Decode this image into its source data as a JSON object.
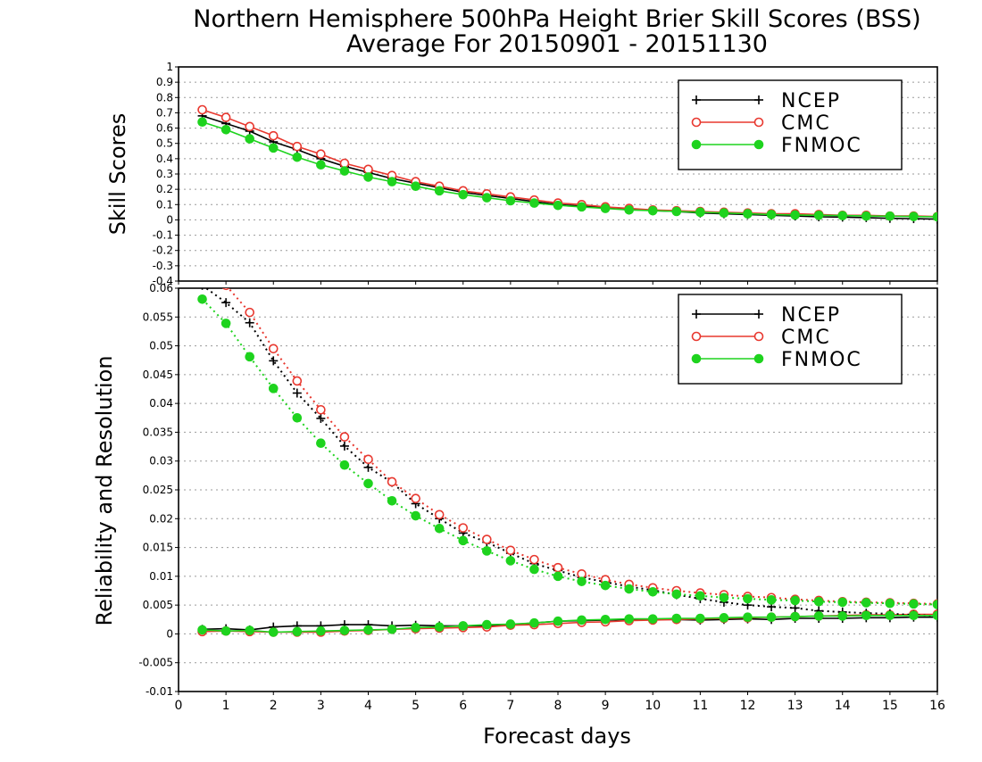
{
  "title_line1": "Northern Hemisphere 500hPa Height Brier Skill Scores (BSS)",
  "title_line2": "Average For 20150901 - 20151130",
  "xlabel": "Forecast days",
  "colors": {
    "NCEP": "#000000",
    "CMC": "#e8382f",
    "FNMOC": "#1ed31e",
    "grid": "#9a9a9a"
  },
  "chart_data": [
    {
      "type": "line",
      "panel": "top",
      "ylabel": "Skill Scores",
      "xlim": [
        0,
        16
      ],
      "ylim": [
        -0.4,
        1
      ],
      "xticks": [
        0,
        1,
        2,
        3,
        4,
        5,
        6,
        7,
        8,
        9,
        10,
        11,
        12,
        13,
        14,
        15,
        16
      ],
      "yticks": [
        -0.4,
        -0.3,
        -0.2,
        -0.1,
        0,
        0.1,
        0.2,
        0.3,
        0.4,
        0.5,
        0.6,
        0.7,
        0.8,
        0.9,
        1
      ],
      "ytick_labels": [
        "-0.4",
        "-0.3",
        "-0.2",
        "-0.1",
        "0",
        "0.1",
        "0.2",
        "0.3",
        "0.4",
        "0.5",
        "0.6",
        "0.7",
        "0.8",
        "0.9",
        "1"
      ],
      "grid": true,
      "legend_position": "top-right",
      "x": [
        0.5,
        1,
        1.5,
        2,
        2.5,
        3,
        3.5,
        4,
        4.5,
        5,
        5.5,
        6,
        6.5,
        7,
        7.5,
        8,
        8.5,
        9,
        9.5,
        10,
        10.5,
        11,
        11.5,
        12,
        12.5,
        13,
        13.5,
        14,
        14.5,
        15,
        15.5,
        16
      ],
      "series": [
        {
          "name": "NCEP",
          "color": "#000000",
          "marker": "plus",
          "style": "solid",
          "values": [
            0.68,
            0.63,
            0.58,
            0.51,
            0.46,
            0.4,
            0.35,
            0.31,
            0.27,
            0.24,
            0.21,
            0.18,
            0.16,
            0.14,
            0.12,
            0.1,
            0.09,
            0.08,
            0.07,
            0.06,
            0.055,
            0.045,
            0.04,
            0.035,
            0.03,
            0.025,
            0.02,
            0.018,
            0.015,
            0.01,
            0.008,
            0.005
          ]
        },
        {
          "name": "CMC",
          "color": "#e8382f",
          "marker": "open-circle",
          "style": "solid",
          "values": [
            0.72,
            0.67,
            0.61,
            0.55,
            0.48,
            0.43,
            0.37,
            0.33,
            0.29,
            0.25,
            0.22,
            0.19,
            0.17,
            0.15,
            0.13,
            0.11,
            0.1,
            0.085,
            0.075,
            0.065,
            0.06,
            0.055,
            0.05,
            0.045,
            0.04,
            0.04,
            0.035,
            0.03,
            0.03,
            0.025,
            0.025,
            0.022
          ]
        },
        {
          "name": "FNMOC",
          "color": "#1ed31e",
          "marker": "filled-circle",
          "style": "solid",
          "values": [
            0.64,
            0.59,
            0.53,
            0.47,
            0.41,
            0.36,
            0.32,
            0.28,
            0.25,
            0.22,
            0.19,
            0.165,
            0.145,
            0.125,
            0.11,
            0.095,
            0.085,
            0.075,
            0.065,
            0.06,
            0.055,
            0.05,
            0.045,
            0.04,
            0.035,
            0.032,
            0.03,
            0.028,
            0.025,
            0.024,
            0.022,
            0.02
          ]
        }
      ]
    },
    {
      "type": "line",
      "panel": "bottom",
      "ylabel": "Reliability and Resolution",
      "xlim": [
        0,
        16
      ],
      "ylim": [
        -0.01,
        0.06
      ],
      "xticks": [
        0,
        1,
        2,
        3,
        4,
        5,
        6,
        7,
        8,
        9,
        10,
        11,
        12,
        13,
        14,
        15,
        16
      ],
      "yticks": [
        -0.01,
        -0.005,
        0,
        0.005,
        0.01,
        0.015,
        0.02,
        0.025,
        0.03,
        0.035,
        0.04,
        0.045,
        0.05,
        0.055,
        0.06
      ],
      "ytick_labels": [
        "-0.01",
        "-0.005",
        "0",
        "0.005",
        "0.01",
        "0.015",
        "0.02",
        "0.025",
        "0.03",
        "0.035",
        "0.04",
        "0.045",
        "0.05",
        "0.055",
        "0.06"
      ],
      "grid": true,
      "legend_position": "top-right",
      "x": [
        0.5,
        1,
        1.5,
        2,
        2.5,
        3,
        3.5,
        4,
        4.5,
        5,
        5.5,
        6,
        6.5,
        7,
        7.5,
        8,
        8.5,
        9,
        9.5,
        10,
        10.5,
        11,
        11.5,
        12,
        12.5,
        13,
        13.5,
        14,
        14.5,
        15,
        15.5,
        16
      ],
      "series": [
        {
          "name": "NCEP",
          "color": "#000000",
          "marker": "plus",
          "style": "solid",
          "role": "resolution-like lower",
          "values": [
            0.0008,
            0.0009,
            0.0007,
            0.0012,
            0.0014,
            0.0014,
            0.0016,
            0.0016,
            0.0014,
            0.0015,
            0.0014,
            0.0014,
            0.0014,
            0.0016,
            0.0019,
            0.0022,
            0.0023,
            0.0024,
            0.0025,
            0.0025,
            0.0025,
            0.0024,
            0.0025,
            0.0026,
            0.0025,
            0.0027,
            0.0027,
            0.0027,
            0.0028,
            0.0028,
            0.0029,
            0.0029
          ]
        },
        {
          "name": "CMC",
          "color": "#e8382f",
          "marker": "open-circle",
          "style": "solid",
          "role": "lower",
          "values": [
            0.0004,
            0.0005,
            0.0004,
            0.0003,
            0.0003,
            0.0003,
            0.0005,
            0.0006,
            0.0008,
            0.0009,
            0.001,
            0.0011,
            0.0012,
            0.0015,
            0.0016,
            0.0018,
            0.002,
            0.0021,
            0.0023,
            0.0024,
            0.0025,
            0.0026,
            0.0027,
            0.0028,
            0.0029,
            0.003,
            0.0031,
            0.0032,
            0.0033,
            0.0033,
            0.0034,
            0.0034
          ]
        },
        {
          "name": "NCEP",
          "color": "#000000",
          "marker": "plus",
          "style": "dotted",
          "role": "upper",
          "values": [
            0.0605,
            0.0575,
            0.054,
            0.0474,
            0.0418,
            0.0374,
            0.0326,
            0.0289,
            0.0263,
            0.0226,
            0.02,
            0.0175,
            0.0159,
            0.014,
            0.0122,
            0.011,
            0.0098,
            0.009,
            0.0082,
            0.0076,
            0.0068,
            0.0061,
            0.0055,
            0.005,
            0.0047,
            0.0045,
            0.004,
            0.0038,
            0.0036,
            0.0035,
            0.0033,
            0.0031
          ]
        },
        {
          "name": "CMC",
          "color": "#e8382f",
          "marker": "open-circle",
          "style": "dotted",
          "role": "upper",
          "values": [
            0.0625,
            0.0605,
            0.0558,
            0.0495,
            0.0439,
            0.0389,
            0.0342,
            0.0303,
            0.0264,
            0.0235,
            0.0207,
            0.0184,
            0.0164,
            0.0145,
            0.0129,
            0.0115,
            0.0104,
            0.0094,
            0.0086,
            0.008,
            0.0075,
            0.0071,
            0.0068,
            0.0065,
            0.0063,
            0.006,
            0.0058,
            0.0056,
            0.0055,
            0.0054,
            0.0053,
            0.0052
          ]
        },
        {
          "name": "FNMOC",
          "color": "#1ed31e",
          "marker": "filled-circle",
          "style": "dotted",
          "role": "upper",
          "values": [
            0.0581,
            0.0539,
            0.0481,
            0.0426,
            0.0375,
            0.0331,
            0.0293,
            0.0261,
            0.0231,
            0.0205,
            0.0183,
            0.0162,
            0.0144,
            0.0127,
            0.0112,
            0.01,
            0.0091,
            0.0084,
            0.0078,
            0.0073,
            0.0069,
            0.0066,
            0.0063,
            0.0061,
            0.0059,
            0.0058,
            0.0056,
            0.0055,
            0.0054,
            0.0053,
            0.0052,
            0.0051
          ]
        },
        {
          "name": "FNMOC",
          "color": "#1ed31e",
          "marker": "filled-circle",
          "style": "solid",
          "role": "lower",
          "values": [
            0.0007,
            0.0005,
            0.0006,
            0.0003,
            0.0004,
            0.0005,
            0.0006,
            0.0007,
            0.0008,
            0.0011,
            0.0012,
            0.0014,
            0.0016,
            0.0017,
            0.0019,
            0.0022,
            0.0024,
            0.0025,
            0.0026,
            0.0026,
            0.0027,
            0.0027,
            0.0028,
            0.0029,
            0.0029,
            0.003,
            0.0031,
            0.0031,
            0.0032,
            0.0032,
            0.0032,
            0.0032
          ]
        }
      ]
    }
  ]
}
